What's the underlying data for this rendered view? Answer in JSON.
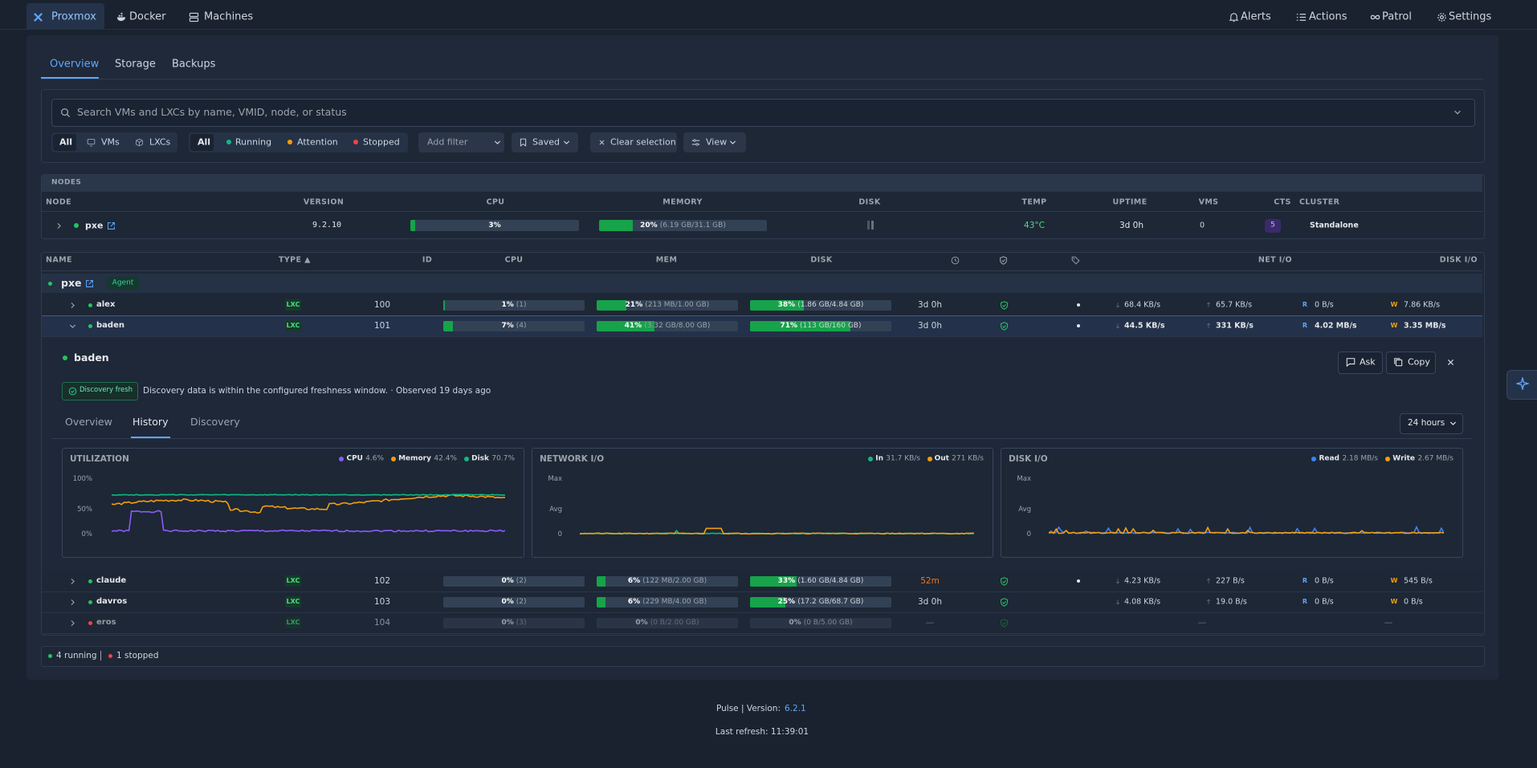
{
  "top_nav": {
    "left": [
      "Proxmox",
      "Docker",
      "Machines"
    ],
    "right": [
      "Alerts",
      "Actions",
      "Patrol",
      "Settings"
    ]
  },
  "tabs": [
    "Overview",
    "Storage",
    "Backups"
  ],
  "search_placeholder": "Search VMs and LXCs by name, VMID, node, or status",
  "filters": {
    "type": [
      "All",
      "VMs",
      "LXCs"
    ],
    "status": [
      {
        "label": "All"
      },
      {
        "label": "Running",
        "color": "#10b981"
      },
      {
        "label": "Attention",
        "color": "#f59e0b"
      },
      {
        "label": "Stopped",
        "color": "#ef4444"
      }
    ],
    "add_filter": "Add filter",
    "saved": "Saved",
    "clear": "Clear selection",
    "view": "View"
  },
  "nodes_section": {
    "title": "NODES",
    "headers": [
      "NODE",
      "VERSION",
      "CPU",
      "MEMORY",
      "DISK",
      "TEMP",
      "UPTIME",
      "VMS",
      "CTS",
      "CLUSTER"
    ],
    "rows": [
      {
        "name": "pxe",
        "version": "9.2.10",
        "cpu": {
          "value": 3,
          "label": "3%"
        },
        "memory": {
          "value": 20,
          "label": "20%",
          "detail": "(6.19 GB/31.1 GB)"
        },
        "temp": "43°C",
        "uptime": "3d 0h",
        "vms": 0,
        "cts": 5,
        "cluster": "Standalone"
      }
    ]
  },
  "guests": {
    "headers": {
      "name": "NAME",
      "type": "TYPE ▲",
      "id": "ID",
      "cpu": "CPU",
      "mem": "MEM",
      "disk": "DISK",
      "net": "NET I/O",
      "disk_io": "DISK I/O"
    },
    "io_prefixes": {
      "read": "R",
      "write": "W"
    },
    "group": {
      "name": "pxe",
      "badge": "Agent"
    },
    "rows": [
      {
        "name": "alex",
        "color": "#22c55e",
        "type": "LXC",
        "id": 100,
        "cpu": {
          "value": 1,
          "label": "1%",
          "detail": "(1)"
        },
        "mem": {
          "value": 21,
          "label": "21%",
          "detail": "(213 MB/1.00 GB)"
        },
        "disk": {
          "value": 38,
          "label": "38%",
          "detail": "(1.86 GB/4.84 GB)"
        },
        "uptime": "3d 0h",
        "has_tags": true,
        "net_in": "68.4 KB/s",
        "net_out": "65.7 KB/s",
        "disk_read": "0 B/s",
        "disk_write": "7.86 KB/s"
      },
      {
        "name": "baden",
        "color": "#22c55e",
        "type": "LXC",
        "id": 101,
        "cpu": {
          "value": 7,
          "label": "7%",
          "detail": "(4)"
        },
        "mem": {
          "value": 41,
          "label": "41%",
          "detail": "(3.32 GB/8.00 GB)"
        },
        "disk": {
          "value": 71,
          "label": "71%",
          "detail": "(113 GB/160 GB)"
        },
        "uptime": "3d 0h",
        "has_tags": true,
        "net_in": "44.5 KB/s",
        "net_out": "331 KB/s",
        "disk_read": "4.02 MB/s",
        "disk_write": "3.35 MB/s",
        "expanded": true
      },
      {
        "name": "claude",
        "color": "#22c55e",
        "type": "LXC",
        "id": 102,
        "cpu": {
          "value": 0,
          "label": "0%",
          "detail": "(2)"
        },
        "mem": {
          "value": 6,
          "label": "6%",
          "detail": "(122 MB/2.00 GB)"
        },
        "disk": {
          "value": 33,
          "label": "33%",
          "detail": "(1.60 GB/4.84 GB)"
        },
        "uptime": "52m",
        "uptime_color": "#f97316",
        "has_tags": true,
        "net_in": "4.23 KB/s",
        "net_out": "227 B/s",
        "disk_read": "0 B/s",
        "disk_write": "545 B/s"
      },
      {
        "name": "davros",
        "color": "#22c55e",
        "type": "LXC",
        "id": 103,
        "cpu": {
          "value": 0,
          "label": "0%",
          "detail": "(2)"
        },
        "mem": {
          "value": 6,
          "label": "6%",
          "detail": "(229 MB/4.00 GB)"
        },
        "disk": {
          "value": 25,
          "label": "25%",
          "detail": "(17.2 GB/68.7 GB)"
        },
        "uptime": "3d 0h",
        "has_tags": false,
        "net_in": "4.08 KB/s",
        "net_out": "19.0 B/s",
        "disk_read": "0 B/s",
        "disk_write": "0 B/s"
      },
      {
        "name": "eros",
        "color": "#ef4444",
        "type": "LXC",
        "id": 104,
        "cpu": {
          "value": 0,
          "label": "0%",
          "detail": "(3)"
        },
        "mem": {
          "value": 0,
          "label": "0%",
          "detail": "(0 B/2.00 GB)"
        },
        "disk": {
          "value": 0,
          "label": "0%",
          "detail": "(0 B/5.00 GB)"
        },
        "uptime": "—",
        "has_tags": false,
        "net": "—",
        "disk_io": "—",
        "dim": true
      }
    ]
  },
  "detail": {
    "name": "baden",
    "actions": [
      "Ask",
      "Copy"
    ],
    "badge": "Discovery fresh",
    "message": "Discovery data is within the configured freshness window. · Observed 19 days ago",
    "tabs": [
      "Overview",
      "History",
      "Discovery"
    ],
    "range": "24 hours",
    "charts": [
      {
        "title": "UTILIZATION",
        "legend": [
          {
            "name": "CPU",
            "value": "4.6%",
            "color": "#8b5cf6"
          },
          {
            "name": "Memory",
            "value": "42.4%",
            "color": "#f59e0b"
          },
          {
            "name": "Disk",
            "value": "70.7%",
            "color": "#10b981"
          }
        ],
        "axis": [
          "100%",
          "50%",
          "0%"
        ]
      },
      {
        "title": "NETWORK I/O",
        "legend": [
          {
            "name": "In",
            "value": "31.7 KB/s",
            "color": "#10b981"
          },
          {
            "name": "Out",
            "value": "271 KB/s",
            "color": "#f59e0b"
          }
        ],
        "axis": [
          "Max",
          "Avg",
          "0"
        ]
      },
      {
        "title": "DISK I/O",
        "legend": [
          {
            "name": "Read",
            "value": "2.18 MB/s",
            "color": "#3b82f6"
          },
          {
            "name": "Write",
            "value": "2.67 MB/s",
            "color": "#f59e0b"
          }
        ],
        "axis": [
          "Max",
          "Avg",
          "0"
        ]
      }
    ]
  },
  "summary": {
    "running": "4 running",
    "stopped": "1 stopped"
  },
  "footer": {
    "version_label": "Pulse | Version:",
    "version": "6.2.1",
    "refresh": "Last refresh: 11:39:01"
  }
}
